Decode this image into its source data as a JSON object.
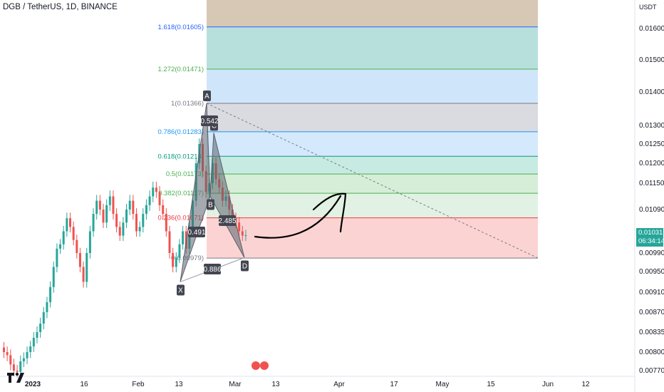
{
  "header": {
    "symbol": "DGB / TetherUS, 1D, BINANCE"
  },
  "price_scale": {
    "currency": "USDT",
    "current_price": "0.01031",
    "countdown": "06:34:14",
    "accent_up": "#26a69a",
    "accent_down": "#ef5350"
  },
  "chart_data": {
    "type": "candlestick",
    "title": "DGB / TetherUS, 1D, BINANCE",
    "x_tick_labels": [
      "2023",
      "16",
      "Feb",
      "13",
      "Mar",
      "13",
      "Apr",
      "17",
      "May",
      "15",
      "Jun",
      "12"
    ],
    "y_tick_labels": [
      "0.01600",
      "0.01500",
      "0.01400",
      "0.01300",
      "0.01250",
      "0.01200",
      "0.01150",
      "0.01090",
      "0.00990",
      "0.00950",
      "0.00910",
      "0.00870",
      "0.00835",
      "0.00800",
      "0.00770"
    ],
    "y_ticks": [
      0.016,
      0.015,
      0.014,
      0.013,
      0.0125,
      0.012,
      0.0115,
      0.0109,
      0.0099,
      0.0095,
      0.0091,
      0.0087,
      0.00835,
      0.008,
      0.0077
    ],
    "fib_levels": [
      {
        "label": "1.618(0.01605)",
        "price": 0.01605,
        "color": "#2962ff"
      },
      {
        "label": "1.272(0.01471)",
        "price": 0.01471,
        "color": "#4caf50"
      },
      {
        "label": "1(0.01366)",
        "price": 0.01366,
        "color": "#787b86"
      },
      {
        "label": "0.786(0.01283)",
        "price": 0.01283,
        "color": "#2196f3"
      },
      {
        "label": "0.618(0.01218)",
        "price": 0.01218,
        "color": "#089981"
      },
      {
        "label": "0.5(0.01173)",
        "price": 0.01173,
        "color": "#4caf50"
      },
      {
        "label": "0.382(0.01127)",
        "price": 0.01127,
        "color": "#4caf50"
      },
      {
        "label": "0.236(0.01071)",
        "price": 0.01071,
        "color": "#f23645"
      },
      {
        "label": "0(0.00979)",
        "price": 0.00979,
        "color": "#787b86"
      }
    ],
    "harmonic_points": [
      {
        "label": "X",
        "price": 0.0093
      },
      {
        "label": "A",
        "price": 0.01366
      },
      {
        "label": "B",
        "price": 0.0112
      },
      {
        "label": "C",
        "price": 0.0128
      },
      {
        "label": "D",
        "price": 0.0098
      }
    ],
    "harmonic_ratios": [
      {
        "label": "0.542"
      },
      {
        "label": "0.491"
      },
      {
        "label": "2.485"
      },
      {
        "label": "0.886"
      }
    ],
    "candles_close": [
      0.008,
      0.00795,
      0.0078,
      0.0077,
      0.00768,
      0.00785,
      0.0079,
      0.008,
      0.0081,
      0.00825,
      0.00835,
      0.0085,
      0.0087,
      0.0089,
      0.0092,
      0.0096,
      0.01,
      0.0101,
      0.0104,
      0.0107,
      0.0105,
      0.0102,
      0.0099,
      0.0096,
      0.0093,
      0.0099,
      0.0104,
      0.0108,
      0.0111,
      0.0109,
      0.0106,
      0.011,
      0.0112,
      0.0108,
      0.0105,
      0.0103,
      0.0106,
      0.0109,
      0.0111,
      0.0108,
      0.0104,
      0.0105,
      0.0108,
      0.011,
      0.0112,
      0.0114,
      0.0113,
      0.011,
      0.0108,
      0.0104,
      0.0099,
      0.0096,
      0.0098,
      0.0101,
      0.0104,
      0.01,
      0.0105,
      0.0111,
      0.012,
      0.0125,
      0.0118,
      0.0113,
      0.0115,
      0.012,
      0.0116,
      0.0114,
      0.0111,
      0.0112,
      0.0109,
      0.0107,
      0.0106,
      0.0104,
      0.0103,
      0.01031
    ]
  },
  "annotations": {
    "arrow": "hand-drawn upward arrow"
  }
}
